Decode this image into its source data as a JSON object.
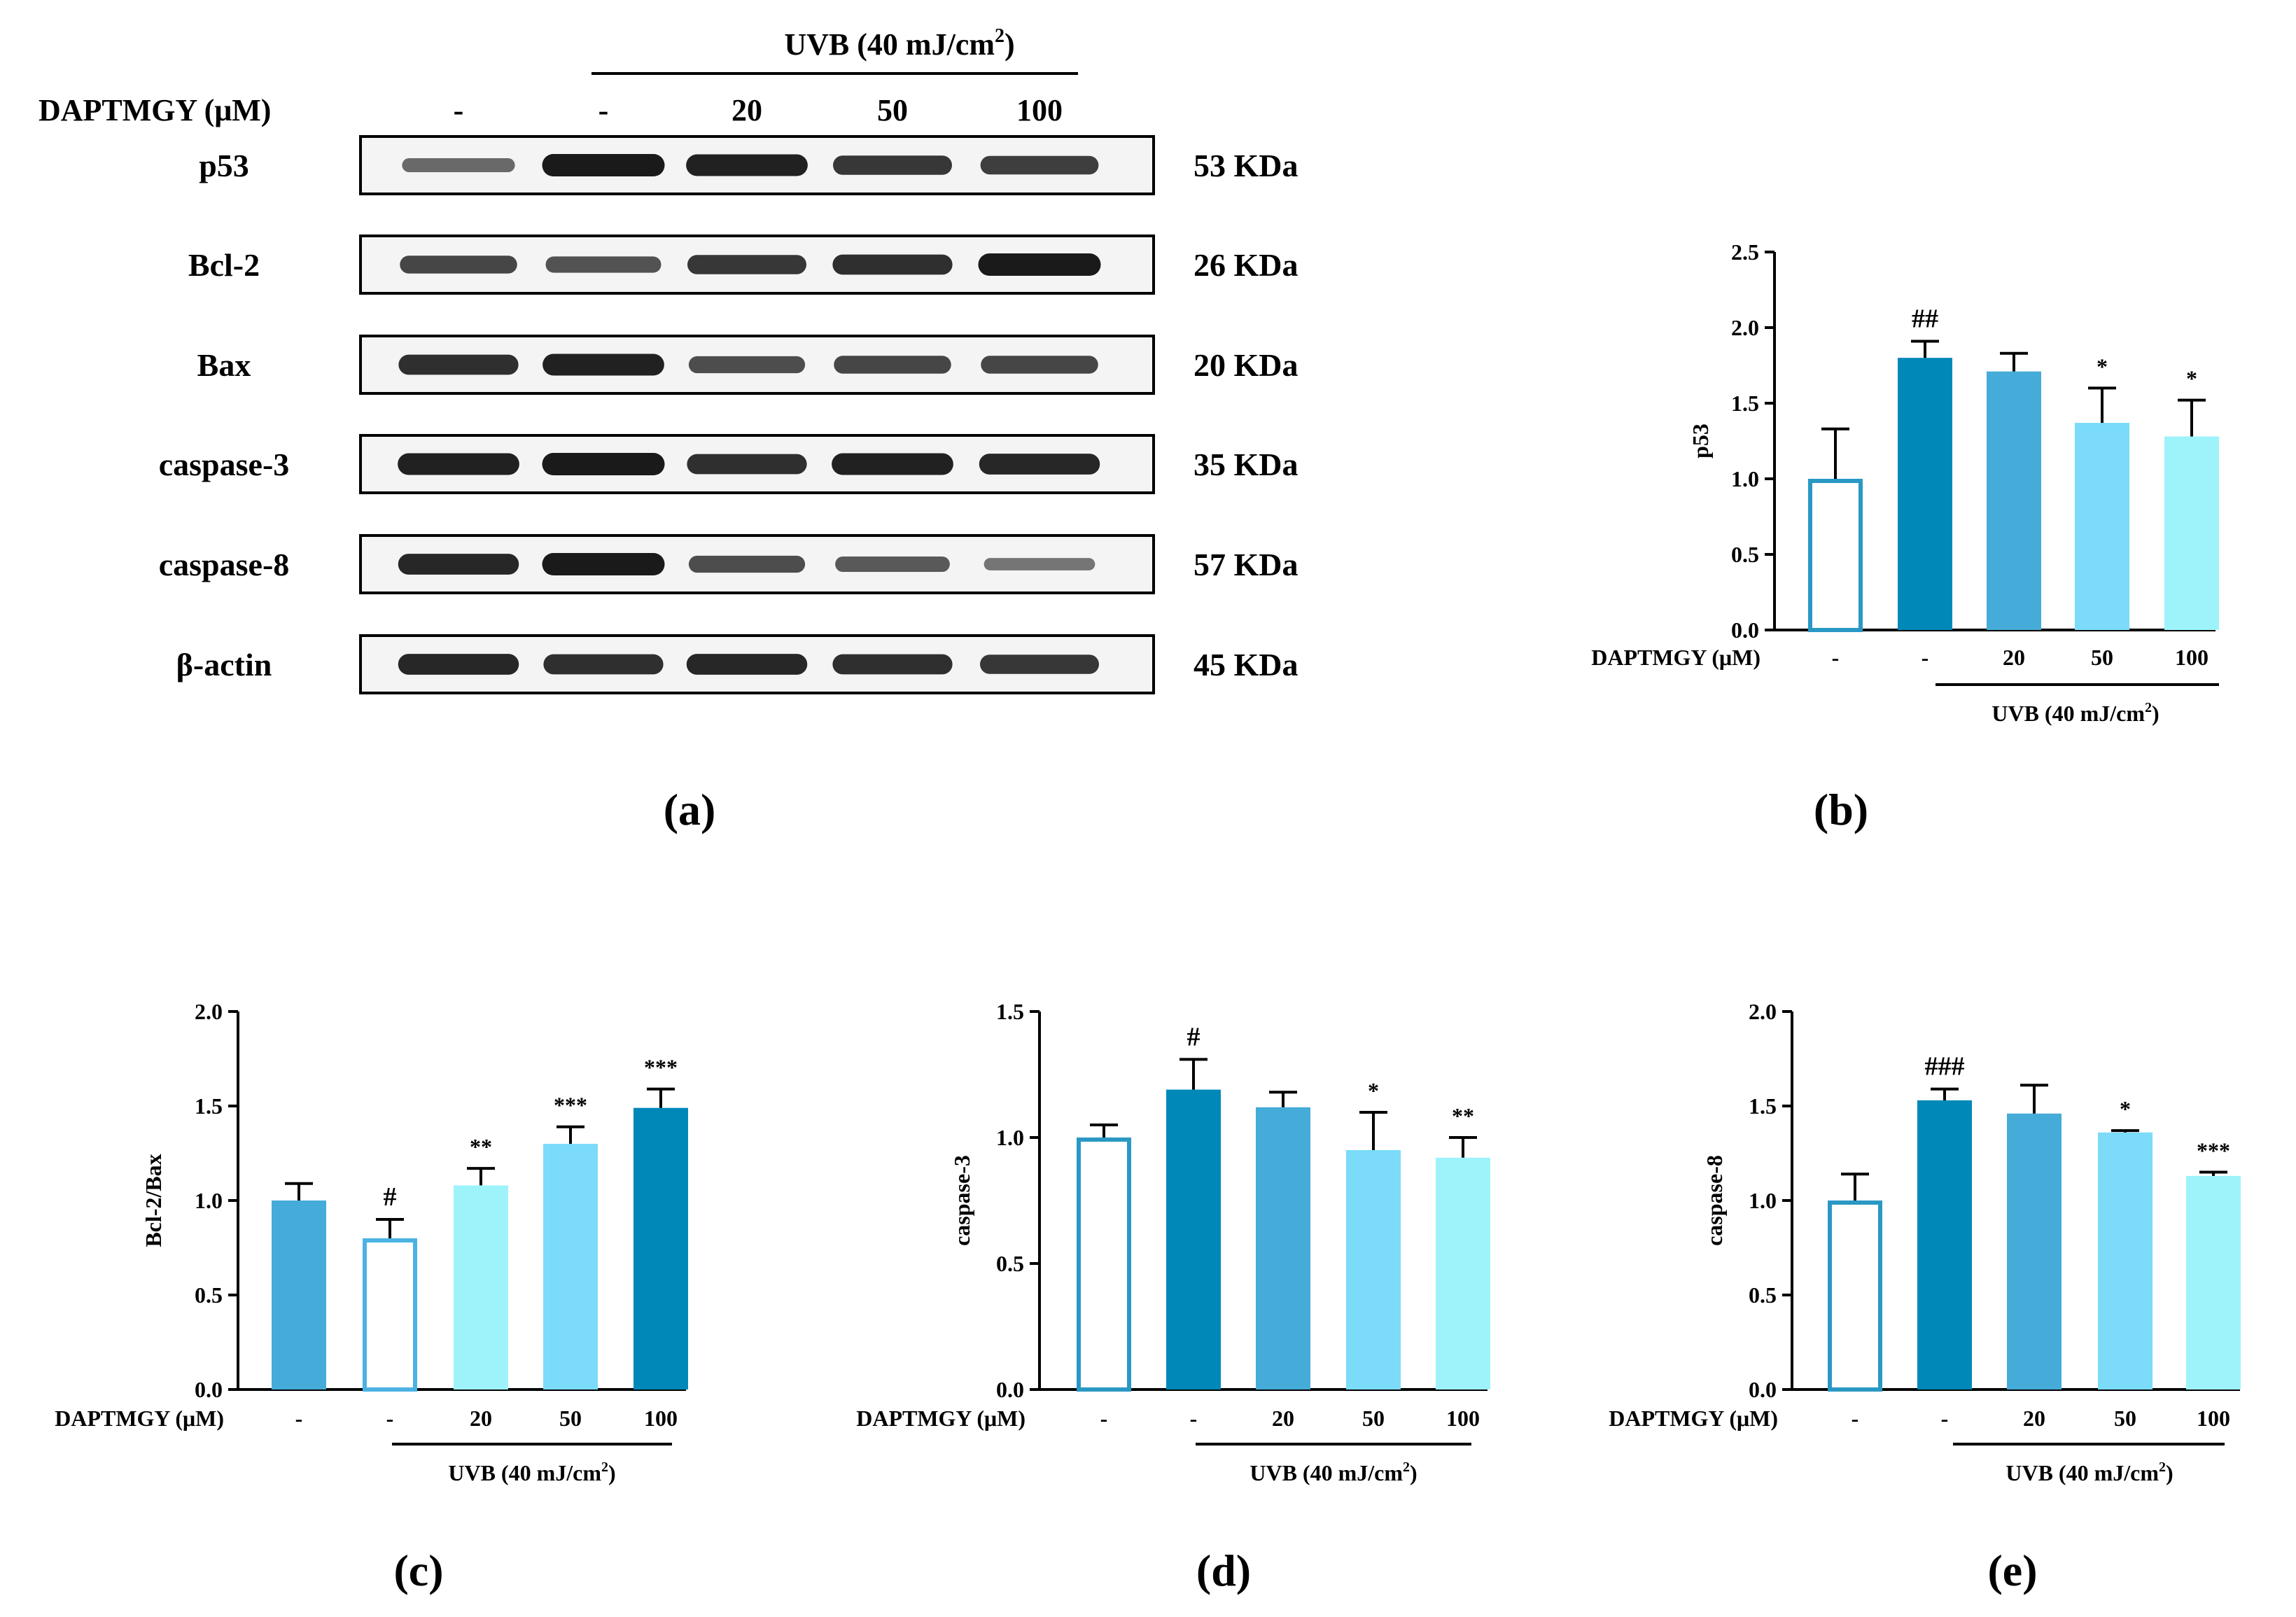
{
  "colors": {
    "white_fill": "#ffffff",
    "dark": "#0088b8",
    "mid": "#45abd8",
    "light": "#7bdbf8",
    "lightest": "#9ef3fb",
    "open_outline_b": "#2a98c4",
    "open_outline_c": "#4bb2e2",
    "band": "#1a1a1a"
  },
  "blot": {
    "uvb_label": "UVB (40 mJ/cm",
    "uvb_sup": "2",
    "uvb_close": ")",
    "dose_label": "DAPTMGY (μM)",
    "doses": [
      "-",
      "-",
      "20",
      "50",
      "100"
    ],
    "rows": [
      {
        "protein": "p53",
        "size": "53 KDa",
        "intensity": [
          0.45,
          1.0,
          0.95,
          0.8,
          0.75
        ]
      },
      {
        "protein": "Bcl-2",
        "size": "26 KDa",
        "intensity": [
          0.7,
          0.6,
          0.8,
          0.85,
          1.0
        ]
      },
      {
        "protein": "Bax",
        "size": "20 KDa",
        "intensity": [
          0.85,
          0.95,
          0.65,
          0.7,
          0.7
        ]
      },
      {
        "protein": "caspase-3",
        "size": "35 KDa",
        "intensity": [
          0.95,
          1.0,
          0.85,
          0.95,
          0.9
        ]
      },
      {
        "protein": "caspase-8",
        "size": "57 KDa",
        "intensity": [
          0.9,
          1.0,
          0.65,
          0.55,
          0.35
        ]
      },
      {
        "protein": "β-actin",
        "size": "45 KDa",
        "intensity": [
          0.9,
          0.85,
          0.9,
          0.85,
          0.8
        ]
      }
    ]
  },
  "panel_labels": [
    "(a)",
    "(b)",
    "(c)",
    "(d)",
    "(e)"
  ],
  "chart_data": [
    {
      "panel": "(b)",
      "type": "bar",
      "ylabel": "p53",
      "ylim": [
        0,
        2.5
      ],
      "yticks": [
        "0.0",
        "0.5",
        "1.0",
        "1.5",
        "2.0",
        "2.5"
      ],
      "xlabel_row": "DAPTMGY (μM)",
      "categories": [
        "-",
        "-",
        "20",
        "50",
        "100"
      ],
      "values": [
        1.0,
        1.8,
        1.71,
        1.37,
        1.28
      ],
      "errors": [
        0.33,
        0.11,
        0.12,
        0.23,
        0.24
      ],
      "significance": [
        "",
        "##",
        "",
        "*",
        "*"
      ],
      "fills": [
        "white_fill",
        "dark",
        "mid",
        "light",
        "lightest"
      ],
      "outline": "open_outline_b",
      "group_label": "UVB (40 mJ/cm",
      "group_sup": "2",
      "group_close": ")"
    },
    {
      "panel": "(c)",
      "type": "bar",
      "ylabel": "Bcl-2/Bax",
      "ylim": [
        0,
        2.0
      ],
      "yticks": [
        "0.0",
        "0.5",
        "1.0",
        "1.5",
        "2.0"
      ],
      "xlabel_row": "DAPTMGY (μM)",
      "categories": [
        "-",
        "-",
        "20",
        "50",
        "100"
      ],
      "values": [
        1.0,
        0.8,
        1.08,
        1.3,
        1.49
      ],
      "errors": [
        0.09,
        0.1,
        0.09,
        0.09,
        0.1
      ],
      "significance": [
        "",
        "#",
        "**",
        "***",
        "***"
      ],
      "fills": [
        "mid",
        "white_fill",
        "lightest",
        "light",
        "dark"
      ],
      "outline": "open_outline_c",
      "group_label": "UVB (40 mJ/cm",
      "group_sup": "2",
      "group_close": ")"
    },
    {
      "panel": "(d)",
      "type": "bar",
      "ylabel": "caspase-3",
      "ylim": [
        0,
        1.5
      ],
      "yticks": [
        "0.0",
        "0.5",
        "1.0",
        "1.5"
      ],
      "xlabel_row": "DAPTMGY (μM)",
      "categories": [
        "-",
        "-",
        "20",
        "50",
        "100"
      ],
      "values": [
        1.0,
        1.19,
        1.12,
        0.95,
        0.92
      ],
      "errors": [
        0.05,
        0.12,
        0.06,
        0.15,
        0.08
      ],
      "significance": [
        "",
        "#",
        "",
        "*",
        "**"
      ],
      "fills": [
        "white_fill",
        "dark",
        "mid",
        "light",
        "lightest"
      ],
      "outline": "open_outline_b",
      "group_label": "UVB (40 mJ/cm",
      "group_sup": "2",
      "group_close": ")"
    },
    {
      "panel": "(e)",
      "type": "bar",
      "ylabel": "caspase-8",
      "ylim": [
        0,
        2.0
      ],
      "yticks": [
        "0.0",
        "0.5",
        "1.0",
        "1.5",
        "2.0"
      ],
      "xlabel_row": "DAPTMGY (μM)",
      "categories": [
        "-",
        "-",
        "20",
        "50",
        "100"
      ],
      "values": [
        1.0,
        1.53,
        1.46,
        1.36,
        1.13
      ],
      "errors": [
        0.14,
        0.06,
        0.15,
        0.01,
        0.02
      ],
      "significance": [
        "",
        "###",
        "",
        "*",
        "***"
      ],
      "fills": [
        "white_fill",
        "dark",
        "mid",
        "light",
        "lightest"
      ],
      "outline": "open_outline_b",
      "group_label": "UVB (40 mJ/cm",
      "group_sup": "2",
      "group_close": ")"
    }
  ]
}
